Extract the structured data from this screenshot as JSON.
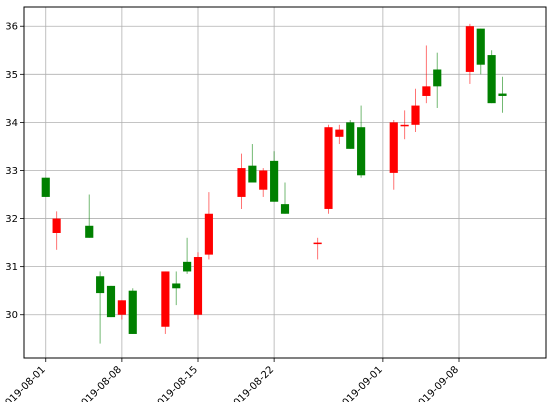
{
  "chart_data": {
    "type": "candlestick",
    "title": "",
    "xlabel": "",
    "ylabel": "",
    "ylim": [
      29.1,
      36.4
    ],
    "xlim": [
      "2019-07-30",
      "2019-09-16"
    ],
    "grid": true,
    "legend": "none",
    "colors": {
      "up": "#ff0000",
      "down": "#008000",
      "wick_up": "#ff0000",
      "wick_down": "#008000"
    },
    "y_ticks": [
      30,
      31,
      32,
      33,
      34,
      35,
      36
    ],
    "x_ticks": [
      "2019-08-01",
      "2019-08-08",
      "2019-08-15",
      "2019-08-22",
      "2019-09-01",
      "2019-09-08"
    ],
    "candles": [
      {
        "date": "2019-08-01",
        "open": 32.85,
        "high": 32.85,
        "low": 32.45,
        "close": 32.45
      },
      {
        "date": "2019-08-02",
        "open": 31.7,
        "high": 32.15,
        "low": 31.35,
        "close": 32.0
      },
      {
        "date": "2019-08-05",
        "open": 31.85,
        "high": 32.5,
        "low": 31.6,
        "close": 31.6
      },
      {
        "date": "2019-08-06",
        "open": 30.8,
        "high": 30.9,
        "low": 29.4,
        "close": 30.45
      },
      {
        "date": "2019-08-07",
        "open": 30.6,
        "high": 30.6,
        "low": 29.95,
        "close": 29.95
      },
      {
        "date": "2019-08-08",
        "open": 30.0,
        "high": 30.3,
        "low": 29.9,
        "close": 30.3
      },
      {
        "date": "2019-08-09",
        "open": 30.5,
        "high": 30.55,
        "low": 29.6,
        "close": 29.6
      },
      {
        "date": "2019-08-12",
        "open": 29.75,
        "high": 30.9,
        "low": 29.6,
        "close": 30.9
      },
      {
        "date": "2019-08-13",
        "open": 30.65,
        "high": 30.9,
        "low": 30.2,
        "close": 30.55
      },
      {
        "date": "2019-08-14",
        "open": 31.1,
        "high": 31.6,
        "low": 30.85,
        "close": 30.9
      },
      {
        "date": "2019-08-15",
        "open": 30.0,
        "high": 31.3,
        "low": 29.9,
        "close": 31.2
      },
      {
        "date": "2019-08-16",
        "open": 31.25,
        "high": 32.55,
        "low": 31.15,
        "close": 32.1
      },
      {
        "date": "2019-08-19",
        "open": 32.45,
        "high": 33.35,
        "low": 32.2,
        "close": 33.05
      },
      {
        "date": "2019-08-20",
        "open": 33.1,
        "high": 33.55,
        "low": 32.75,
        "close": 32.75
      },
      {
        "date": "2019-08-21",
        "open": 32.6,
        "high": 33.05,
        "low": 32.45,
        "close": 33.0
      },
      {
        "date": "2019-08-22",
        "open": 33.2,
        "high": 33.4,
        "low": 32.35,
        "close": 32.35
      },
      {
        "date": "2019-08-23",
        "open": 32.3,
        "high": 32.75,
        "low": 32.1,
        "close": 32.1
      },
      {
        "date": "2019-08-26",
        "open": 31.5,
        "high": 31.6,
        "low": 31.15,
        "close": 31.5
      },
      {
        "date": "2019-08-27",
        "open": 32.2,
        "high": 33.95,
        "low": 32.1,
        "close": 33.9
      },
      {
        "date": "2019-08-28",
        "open": 33.7,
        "high": 33.95,
        "low": 33.55,
        "close": 33.85
      },
      {
        "date": "2019-08-29",
        "open": 34.0,
        "high": 34.05,
        "low": 33.45,
        "close": 33.45
      },
      {
        "date": "2019-08-30",
        "open": 33.9,
        "high": 34.35,
        "low": 32.85,
        "close": 32.9
      },
      {
        "date": "2019-09-02",
        "open": 32.95,
        "high": 34.05,
        "low": 32.6,
        "close": 34.0
      },
      {
        "date": "2019-09-03",
        "open": 33.95,
        "high": 34.25,
        "low": 33.65,
        "close": 33.95
      },
      {
        "date": "2019-09-04",
        "open": 33.95,
        "high": 34.7,
        "low": 33.8,
        "close": 34.35
      },
      {
        "date": "2019-09-05",
        "open": 34.55,
        "high": 35.6,
        "low": 34.4,
        "close": 34.75
      },
      {
        "date": "2019-09-06",
        "open": 35.1,
        "high": 35.45,
        "low": 34.3,
        "close": 34.75
      },
      {
        "date": "2019-09-09",
        "open": 35.05,
        "high": 36.05,
        "low": 34.8,
        "close": 36.0
      },
      {
        "date": "2019-09-10",
        "open": 35.95,
        "high": 35.95,
        "low": 35.0,
        "close": 35.2
      },
      {
        "date": "2019-09-11",
        "open": 35.4,
        "high": 35.5,
        "low": 34.4,
        "close": 34.4
      },
      {
        "date": "2019-09-12",
        "open": 34.6,
        "high": 34.95,
        "low": 34.2,
        "close": 34.55
      }
    ]
  }
}
